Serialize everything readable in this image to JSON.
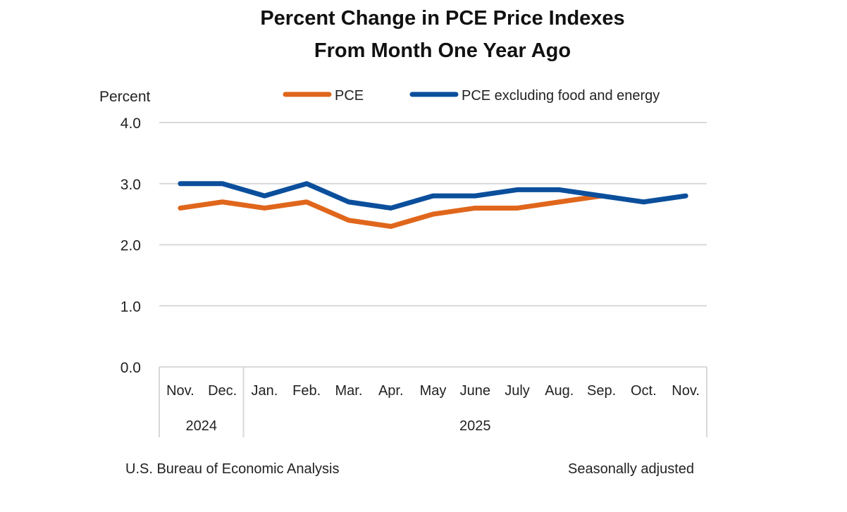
{
  "chart_data": {
    "type": "line",
    "title": [
      "Percent Change in PCE Price Indexes",
      "From Month One Year Ago"
    ],
    "ylabel": "Percent",
    "ylim": [
      0,
      4
    ],
    "yticks": [
      "0.0",
      "1.0",
      "2.0",
      "3.0",
      "4.0"
    ],
    "grid": true,
    "legend_position": "top",
    "categories": [
      "Nov.",
      "Dec.",
      "Jan.",
      "Feb.",
      "Mar.",
      "Apr.",
      "May",
      "June",
      "July",
      "Aug.",
      "Sep.",
      "Oct.",
      "Nov."
    ],
    "year_groups": [
      {
        "label": "2024",
        "count": 2
      },
      {
        "label": "2025",
        "count": 11
      }
    ],
    "series": [
      {
        "name": "PCE",
        "color": "#E0661C",
        "values": [
          2.6,
          2.7,
          2.6,
          2.7,
          2.4,
          2.3,
          2.5,
          2.6,
          2.6,
          2.7,
          2.8,
          null,
          null
        ]
      },
      {
        "name": "PCE excluding food and energy",
        "color": "#0B4F9C",
        "values": [
          3.0,
          3.0,
          2.8,
          3.0,
          2.7,
          2.6,
          2.8,
          2.8,
          2.9,
          2.9,
          2.8,
          2.7,
          2.8
        ]
      }
    ],
    "source": "U.S. Bureau of Economic Analysis",
    "note": "Seasonally adjusted"
  }
}
